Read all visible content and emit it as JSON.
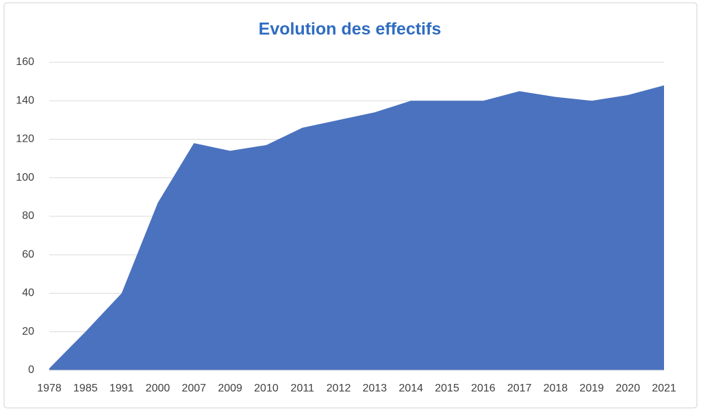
{
  "chart_data": {
    "type": "area",
    "title": "Evolution des effectifs",
    "categories": [
      "1978",
      "1985",
      "1991",
      "2000",
      "2007",
      "2009",
      "2010",
      "2011",
      "2012",
      "2013",
      "2014",
      "2015",
      "2016",
      "2017",
      "2018",
      "2019",
      "2020",
      "2021"
    ],
    "values": [
      1,
      20,
      40,
      87,
      118,
      114,
      117,
      126,
      130,
      134,
      140,
      140,
      140,
      145,
      142,
      140,
      143,
      148
    ],
    "color": "#4a72be",
    "ylim": [
      0,
      160
    ],
    "yticks": [
      0,
      20,
      40,
      60,
      80,
      100,
      120,
      140,
      160
    ],
    "grid": true
  }
}
